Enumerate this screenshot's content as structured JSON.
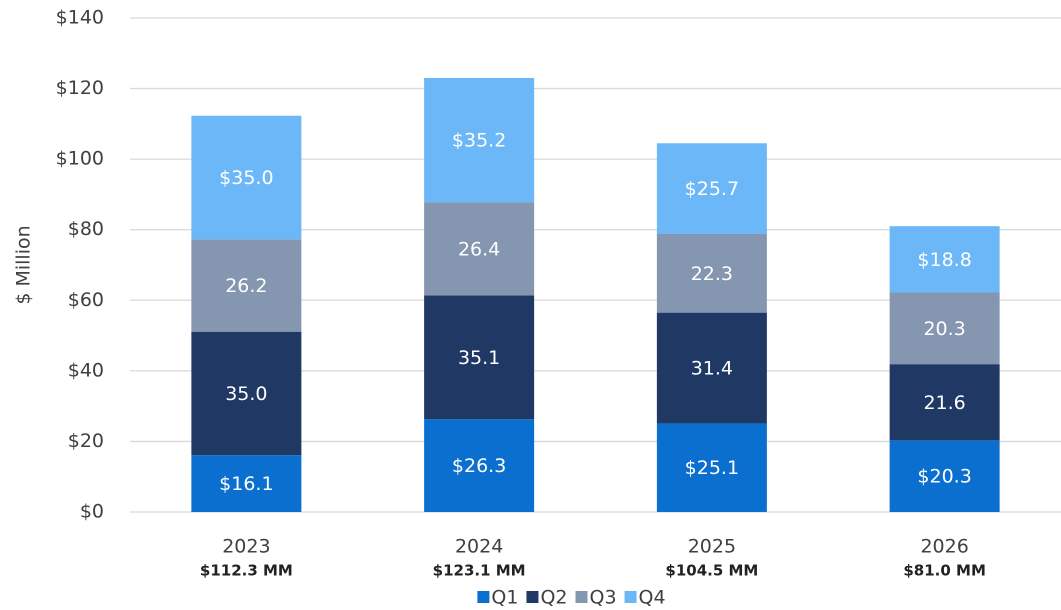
{
  "chart_data": {
    "type": "stacked_bar",
    "y_label": "$ Million",
    "categories": [
      "2023",
      "2024",
      "2025",
      "2026"
    ],
    "category_totals": [
      "$112.3 MM",
      "$123.1 MM",
      "$104.5 MM",
      "$81.0 MM"
    ],
    "series": [
      {
        "name": "Q1",
        "color": "#0a6fcf",
        "values": [
          16.1,
          26.3,
          25.1,
          20.3
        ],
        "value_labels": [
          "$16.1",
          "$26.3",
          "$25.1",
          "$20.3"
        ]
      },
      {
        "name": "Q2",
        "color": "#1f3864",
        "values": [
          35.0,
          35.1,
          31.4,
          21.6
        ],
        "value_labels": [
          "35.0",
          "35.1",
          "31.4",
          "21.6"
        ]
      },
      {
        "name": "Q3",
        "color": "#8496b0",
        "values": [
          26.2,
          26.4,
          22.3,
          20.3
        ],
        "value_labels": [
          "26.2",
          "26.4",
          "22.3",
          "20.3"
        ]
      },
      {
        "name": "Q4",
        "color": "#6bb7f7",
        "values": [
          35.0,
          35.2,
          25.7,
          18.8
        ],
        "value_labels": [
          "$35.0",
          "$35.2",
          "$25.7",
          "$18.8"
        ]
      }
    ],
    "ylim": [
      0,
      140
    ],
    "yticks": [
      {
        "value": 0,
        "label": "$0"
      },
      {
        "value": 20,
        "label": "$20"
      },
      {
        "value": 40,
        "label": "$40"
      },
      {
        "value": 60,
        "label": "$60"
      },
      {
        "value": 80,
        "label": "$80"
      },
      {
        "value": 100,
        "label": "$100"
      },
      {
        "value": 120,
        "label": "$120"
      },
      {
        "value": 140,
        "label": "$140"
      }
    ],
    "grid": true,
    "legend": "bottom"
  }
}
